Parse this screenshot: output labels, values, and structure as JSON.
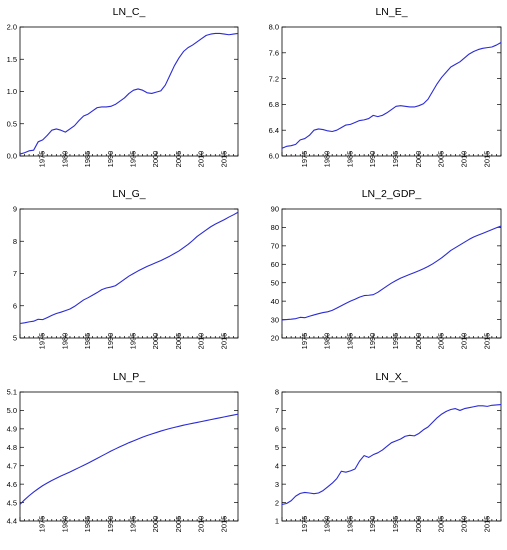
{
  "colors": {
    "line": "#2b2bd6",
    "axis": "#000000"
  },
  "chart_data": [
    {
      "type": "line",
      "title": "LN_C_",
      "xlim": [
        1970,
        2018
      ],
      "ylim": [
        0.0,
        2.0
      ],
      "yticks": [
        "0.0",
        "0.5",
        "1.0",
        "1.5",
        "2.0"
      ],
      "xticks": [
        "1975",
        "1980",
        "1985",
        "1990",
        "1995",
        "2000",
        "2005",
        "2010",
        "2015"
      ],
      "grid": false,
      "series": [
        {
          "x": [
            1970,
            1971,
            1972,
            1973,
            1974,
            1975,
            1976,
            1977,
            1978,
            1979,
            1980,
            1981,
            1982,
            1983,
            1984,
            1985,
            1986,
            1987,
            1988,
            1989,
            1990,
            1991,
            1992,
            1993,
            1994,
            1995,
            1996,
            1997,
            1998,
            1999,
            2000,
            2001,
            2002,
            2003,
            2004,
            2005,
            2006,
            2007,
            2008,
            2009,
            2010,
            2011,
            2012,
            2013,
            2014,
            2015,
            2016,
            2017,
            2018
          ],
          "y": [
            0.03,
            0.05,
            0.08,
            0.09,
            0.22,
            0.25,
            0.32,
            0.4,
            0.42,
            0.4,
            0.37,
            0.42,
            0.47,
            0.55,
            0.62,
            0.65,
            0.7,
            0.75,
            0.76,
            0.76,
            0.77,
            0.8,
            0.85,
            0.9,
            0.97,
            1.02,
            1.04,
            1.02,
            0.98,
            0.97,
            0.99,
            1.01,
            1.1,
            1.25,
            1.4,
            1.52,
            1.62,
            1.68,
            1.72,
            1.77,
            1.82,
            1.87,
            1.89,
            1.9,
            1.9,
            1.89,
            1.88,
            1.89,
            1.9
          ]
        }
      ]
    },
    {
      "type": "line",
      "title": "LN_E_",
      "xlim": [
        1970,
        2018
      ],
      "ylim": [
        6.0,
        8.0
      ],
      "yticks": [
        "6.0",
        "6.4",
        "6.8",
        "7.2",
        "7.6",
        "8.0"
      ],
      "xticks": [
        "1975",
        "1980",
        "1985",
        "1990",
        "1995",
        "2000",
        "2005",
        "2010",
        "2015"
      ],
      "grid": false,
      "series": [
        {
          "x": [
            1970,
            1971,
            1972,
            1973,
            1974,
            1975,
            1976,
            1977,
            1978,
            1979,
            1980,
            1981,
            1982,
            1983,
            1984,
            1985,
            1986,
            1987,
            1988,
            1989,
            1990,
            1991,
            1992,
            1993,
            1994,
            1995,
            1996,
            1997,
            1998,
            1999,
            2000,
            2001,
            2002,
            2003,
            2004,
            2005,
            2006,
            2007,
            2008,
            2009,
            2010,
            2011,
            2012,
            2013,
            2014,
            2015,
            2016,
            2017,
            2018
          ],
          "y": [
            6.12,
            6.15,
            6.16,
            6.18,
            6.25,
            6.27,
            6.32,
            6.4,
            6.42,
            6.41,
            6.39,
            6.38,
            6.4,
            6.44,
            6.48,
            6.49,
            6.52,
            6.55,
            6.56,
            6.58,
            6.63,
            6.61,
            6.63,
            6.67,
            6.72,
            6.77,
            6.78,
            6.77,
            6.76,
            6.76,
            6.78,
            6.81,
            6.88,
            7.0,
            7.12,
            7.22,
            7.3,
            7.38,
            7.42,
            7.46,
            7.52,
            7.58,
            7.62,
            7.65,
            7.67,
            7.68,
            7.69,
            7.72,
            7.76
          ]
        }
      ]
    },
    {
      "type": "line",
      "title": "LN_G_",
      "xlim": [
        1970,
        2018
      ],
      "ylim": [
        5,
        9
      ],
      "yticks": [
        "5",
        "6",
        "7",
        "8",
        "9"
      ],
      "xticks": [
        "1975",
        "1980",
        "1985",
        "1990",
        "1995",
        "2000",
        "2005",
        "2010",
        "2015"
      ],
      "grid": false,
      "series": [
        {
          "x": [
            1970,
            1971,
            1972,
            1973,
            1974,
            1975,
            1976,
            1977,
            1978,
            1979,
            1980,
            1981,
            1982,
            1983,
            1984,
            1985,
            1986,
            1987,
            1988,
            1989,
            1990,
            1991,
            1992,
            1993,
            1994,
            1995,
            1996,
            1997,
            1998,
            1999,
            2000,
            2001,
            2002,
            2003,
            2004,
            2005,
            2006,
            2007,
            2008,
            2009,
            2010,
            2011,
            2012,
            2013,
            2014,
            2015,
            2016,
            2017,
            2018
          ],
          "y": [
            5.45,
            5.47,
            5.5,
            5.52,
            5.58,
            5.57,
            5.63,
            5.7,
            5.76,
            5.8,
            5.85,
            5.9,
            5.98,
            6.08,
            6.18,
            6.25,
            6.33,
            6.41,
            6.5,
            6.55,
            6.58,
            6.62,
            6.72,
            6.82,
            6.92,
            7.0,
            7.08,
            7.15,
            7.22,
            7.28,
            7.34,
            7.4,
            7.47,
            7.54,
            7.62,
            7.7,
            7.8,
            7.9,
            8.02,
            8.15,
            8.25,
            8.35,
            8.45,
            8.53,
            8.6,
            8.67,
            8.75,
            8.82,
            8.9
          ]
        }
      ]
    },
    {
      "type": "line",
      "title": "LN_2_GDP_",
      "xlim": [
        1970,
        2018
      ],
      "ylim": [
        20,
        90
      ],
      "yticks": [
        "20",
        "30",
        "40",
        "50",
        "60",
        "70",
        "80",
        "90"
      ],
      "xticks": [
        "1975",
        "1980",
        "1985",
        "1990",
        "1995",
        "2000",
        "2005",
        "2010",
        "2015"
      ],
      "grid": false,
      "series": [
        {
          "x": [
            1970,
            1971,
            1972,
            1973,
            1974,
            1975,
            1976,
            1977,
            1978,
            1979,
            1980,
            1981,
            1982,
            1983,
            1984,
            1985,
            1986,
            1987,
            1988,
            1989,
            1990,
            1991,
            1992,
            1993,
            1994,
            1995,
            1996,
            1997,
            1998,
            1999,
            2000,
            2001,
            2002,
            2003,
            2004,
            2005,
            2006,
            2007,
            2008,
            2009,
            2010,
            2011,
            2012,
            2013,
            2014,
            2015,
            2016,
            2017,
            2018
          ],
          "y": [
            29.8,
            30.0,
            30.2,
            30.5,
            31.2,
            31.0,
            31.8,
            32.5,
            33.2,
            33.8,
            34.2,
            35.0,
            36.2,
            37.5,
            38.8,
            40.0,
            41.0,
            42.2,
            43.0,
            43.2,
            43.5,
            44.8,
            46.5,
            48.2,
            49.8,
            51.2,
            52.5,
            53.5,
            54.5,
            55.5,
            56.5,
            57.6,
            58.8,
            60.2,
            61.8,
            63.5,
            65.5,
            67.5,
            69.0,
            70.5,
            72.0,
            73.5,
            74.8,
            75.8,
            76.8,
            77.8,
            78.8,
            79.8,
            80.8
          ]
        }
      ]
    },
    {
      "type": "line",
      "title": "LN_P_",
      "xlim": [
        1970,
        2018
      ],
      "ylim": [
        4.4,
        5.1
      ],
      "yticks": [
        "4.4",
        "4.5",
        "4.6",
        "4.7",
        "4.8",
        "4.9",
        "5.0",
        "5.1"
      ],
      "xticks": [
        "1975",
        "1980",
        "1985",
        "1990",
        "1995",
        "2000",
        "2005",
        "2010",
        "2015"
      ],
      "grid": false,
      "series": [
        {
          "x": [
            1970,
            1971,
            1972,
            1973,
            1974,
            1975,
            1976,
            1977,
            1978,
            1979,
            1980,
            1981,
            1982,
            1983,
            1984,
            1985,
            1986,
            1987,
            1988,
            1989,
            1990,
            1991,
            1992,
            1993,
            1994,
            1995,
            1996,
            1997,
            1998,
            1999,
            2000,
            2001,
            2002,
            2003,
            2004,
            2005,
            2006,
            2007,
            2008,
            2009,
            2010,
            2011,
            2012,
            2013,
            2014,
            2015,
            2016,
            2017,
            2018
          ],
          "y": [
            4.49,
            4.515,
            4.537,
            4.557,
            4.575,
            4.592,
            4.606,
            4.62,
            4.632,
            4.644,
            4.655,
            4.666,
            4.678,
            4.69,
            4.702,
            4.714,
            4.727,
            4.74,
            4.753,
            4.766,
            4.779,
            4.791,
            4.803,
            4.814,
            4.825,
            4.835,
            4.845,
            4.855,
            4.864,
            4.872,
            4.88,
            4.888,
            4.895,
            4.902,
            4.908,
            4.914,
            4.92,
            4.925,
            4.93,
            4.935,
            4.94,
            4.945,
            4.95,
            4.955,
            4.96,
            4.965,
            4.97,
            4.975,
            4.98
          ]
        }
      ]
    },
    {
      "type": "line",
      "title": "LN_X_",
      "xlim": [
        1970,
        2018
      ],
      "ylim": [
        1,
        8
      ],
      "yticks": [
        "1",
        "2",
        "3",
        "4",
        "5",
        "6",
        "7",
        "8"
      ],
      "xticks": [
        "1975",
        "1980",
        "1985",
        "1990",
        "1995",
        "2000",
        "2005",
        "2010",
        "2015"
      ],
      "grid": false,
      "series": [
        {
          "x": [
            1970,
            1971,
            1972,
            1973,
            1974,
            1975,
            1976,
            1977,
            1978,
            1979,
            1980,
            1981,
            1982,
            1983,
            1984,
            1985,
            1986,
            1987,
            1988,
            1989,
            1990,
            1991,
            1992,
            1993,
            1994,
            1995,
            1996,
            1997,
            1998,
            1999,
            2000,
            2001,
            2002,
            2003,
            2004,
            2005,
            2006,
            2007,
            2008,
            2009,
            2010,
            2011,
            2012,
            2013,
            2014,
            2015,
            2016,
            2017,
            2018
          ],
          "y": [
            1.9,
            1.95,
            2.1,
            2.35,
            2.5,
            2.55,
            2.52,
            2.48,
            2.52,
            2.65,
            2.85,
            3.05,
            3.3,
            3.7,
            3.65,
            3.72,
            3.82,
            4.25,
            4.55,
            4.45,
            4.6,
            4.7,
            4.85,
            5.05,
            5.25,
            5.35,
            5.45,
            5.6,
            5.65,
            5.62,
            5.75,
            5.95,
            6.1,
            6.35,
            6.6,
            6.8,
            6.95,
            7.05,
            7.1,
            7.0,
            7.1,
            7.15,
            7.2,
            7.25,
            7.25,
            7.22,
            7.28,
            7.3,
            7.32
          ]
        }
      ]
    }
  ]
}
